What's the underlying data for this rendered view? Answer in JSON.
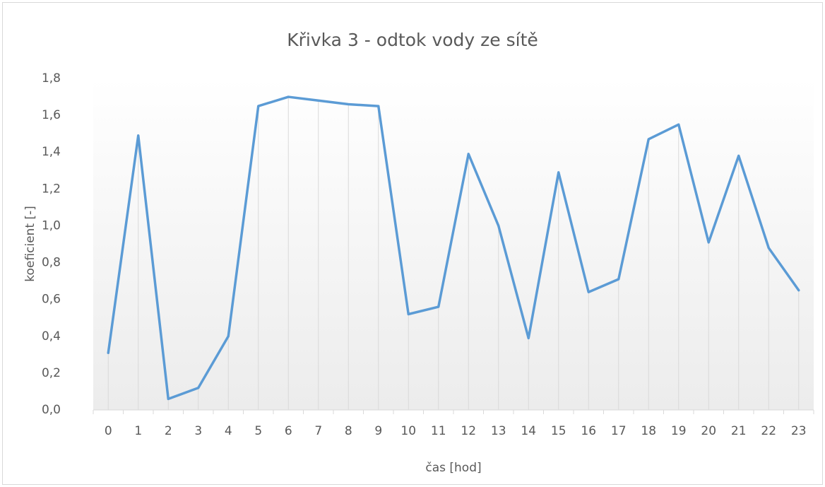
{
  "chart_data": {
    "type": "line",
    "title": "Křivka 3 - odtok vody ze sítě",
    "x_label": "čas [hod]",
    "y_label": "koeficient [-]",
    "categories": [
      "0",
      "1",
      "2",
      "3",
      "4",
      "5",
      "6",
      "7",
      "8",
      "9",
      "10",
      "11",
      "12",
      "13",
      "14",
      "15",
      "16",
      "17",
      "18",
      "19",
      "20",
      "21",
      "22",
      "23"
    ],
    "series": [
      {
        "name": "koeficient",
        "color": "#5b9bd5",
        "values": [
          0.31,
          1.49,
          0.06,
          0.12,
          0.4,
          1.65,
          1.7,
          1.68,
          1.66,
          1.65,
          0.52,
          0.56,
          1.39,
          1.0,
          0.39,
          1.29,
          0.64,
          0.71,
          1.47,
          1.55,
          0.91,
          1.38,
          0.88,
          0.65
        ]
      }
    ],
    "ylim": [
      0,
      1.8
    ],
    "yticks": [
      {
        "value": 0,
        "label": "0,0"
      },
      {
        "value": 0.2,
        "label": "0,2"
      },
      {
        "value": 0.4,
        "label": "0,4"
      },
      {
        "value": 0.6,
        "label": "0,6"
      },
      {
        "value": 0.8,
        "label": "0,8"
      },
      {
        "value": 1.0,
        "label": "1,0"
      },
      {
        "value": 1.2,
        "label": "1,2"
      },
      {
        "value": 1.4,
        "label": "1,4"
      },
      {
        "value": 1.6,
        "label": "1,6"
      },
      {
        "value": 1.8,
        "label": "1,8"
      }
    ],
    "drop_lines": true
  }
}
